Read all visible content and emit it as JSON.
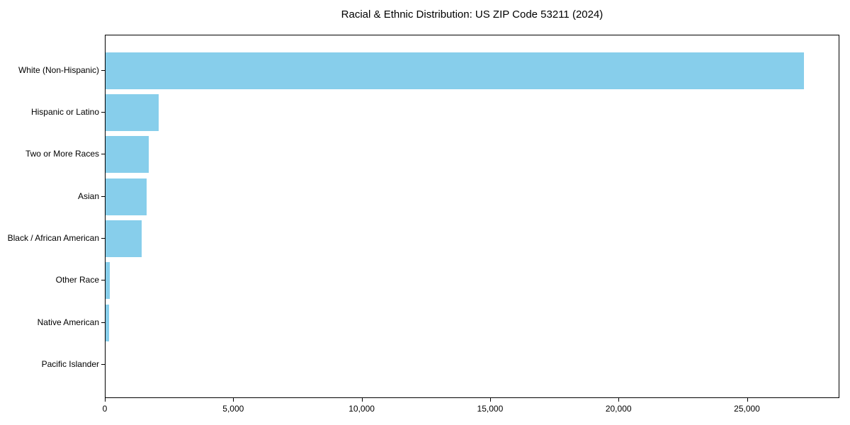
{
  "chart_data": {
    "type": "bar",
    "orientation": "horizontal",
    "title": "Racial & Ethnic Distribution: US ZIP Code 53211 (2024)",
    "xlabel": "",
    "ylabel": "",
    "categories": [
      "White (Non-Hispanic)",
      "Hispanic or Latino",
      "Two or More Races",
      "Asian",
      "Black / African American",
      "Other Race",
      "Native American",
      "Pacific Islander"
    ],
    "values": [
      27200,
      2060,
      1670,
      1600,
      1400,
      170,
      140,
      0
    ],
    "xlim": [
      0,
      28600
    ],
    "xticks": [
      0,
      5000,
      10000,
      15000,
      20000,
      25000
    ],
    "xtick_labels": [
      "0",
      "5,000",
      "10,000",
      "15,000",
      "20,000",
      "25,000"
    ],
    "grid": false,
    "legend": null,
    "bar_color": "#87CEEB",
    "spine_color": "#000000",
    "text_color": "#000000",
    "background_color": "#ffffff"
  }
}
